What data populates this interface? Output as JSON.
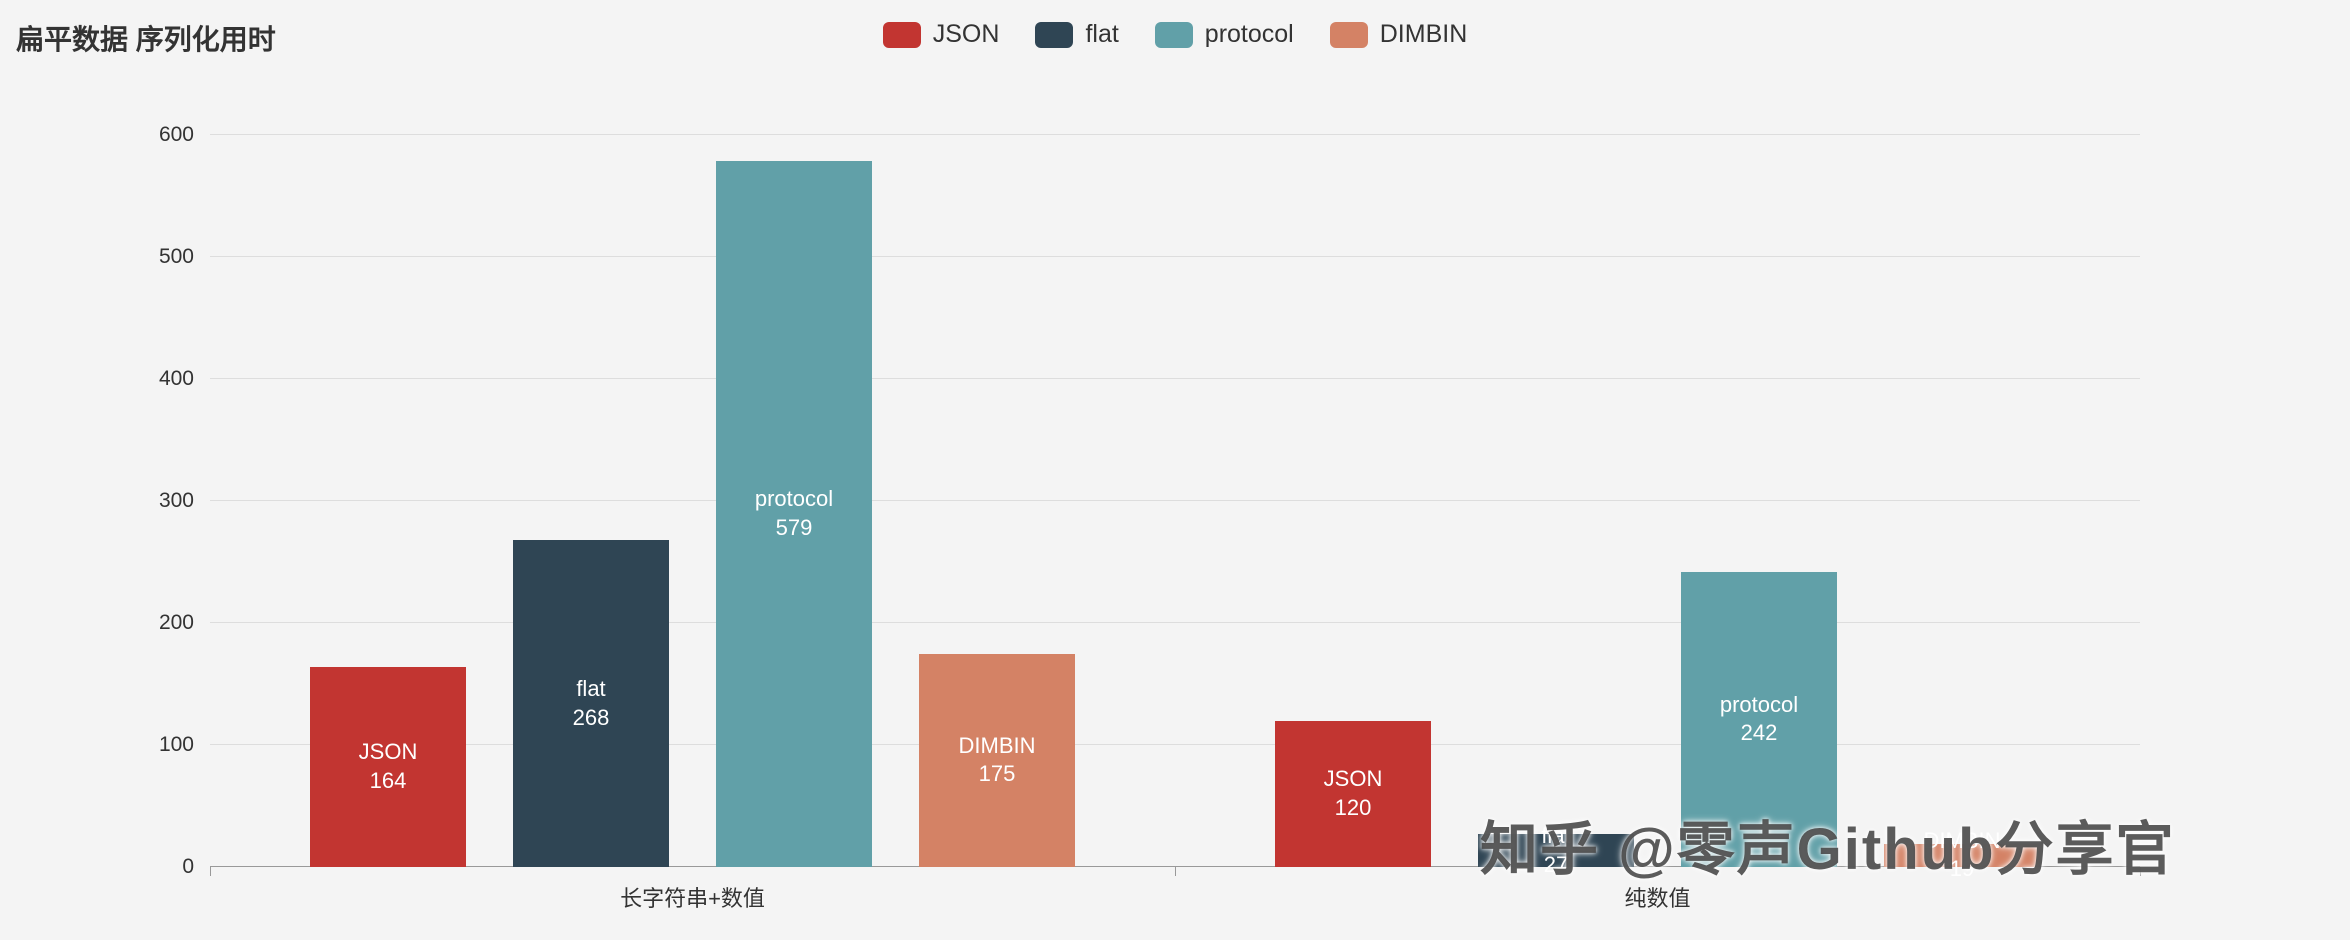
{
  "watermark": "知乎 @零声Github分享官",
  "chart_data": {
    "type": "bar",
    "title": "扁平数据 序列化用时",
    "categories": [
      "长字符串+数值",
      "纯数值"
    ],
    "series": [
      {
        "name": "JSON",
        "color": "#c23531",
        "values": [
          164,
          120
        ]
      },
      {
        "name": "flat",
        "color": "#2f4554",
        "values": [
          268,
          27
        ]
      },
      {
        "name": "protocol",
        "color": "#61a0a8",
        "values": [
          579,
          242
        ]
      },
      {
        "name": "DIMBIN",
        "color": "#d48265",
        "values": [
          175,
          19
        ]
      }
    ],
    "xlabel": "",
    "ylabel": "",
    "ylim": [
      0,
      600
    ],
    "yticks": [
      0,
      100,
      200,
      300,
      400,
      500,
      600
    ],
    "grid": true,
    "legend_position": "top",
    "bar_labels": "series name + value inside each bar"
  }
}
